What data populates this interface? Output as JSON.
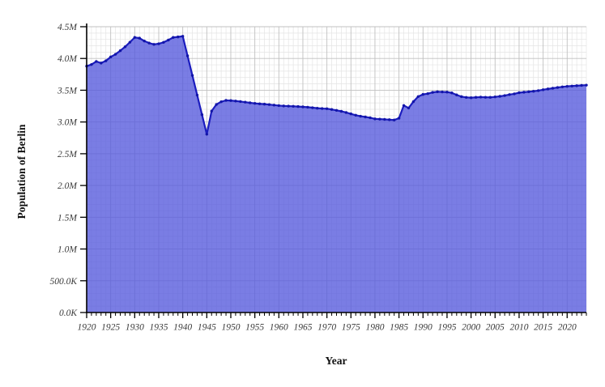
{
  "chart_data": {
    "type": "area",
    "title": "",
    "xlabel": "Year",
    "ylabel": "Population of Berlin",
    "legend": "none",
    "grid": "major and minor gridlines on",
    "xlim": [
      1920,
      2024
    ],
    "ylim_millions": [
      0,
      4.5
    ],
    "x_major_tick_step_years": 5,
    "x_minor_tick_step_years": 1,
    "y_major_tick_step_millions": 0.5,
    "y_minor_grid_step_millions": 0.1,
    "x_major_tick_labels": [
      "1920",
      "1925",
      "1930",
      "1935",
      "1940",
      "1945",
      "1950",
      "1955",
      "1960",
      "1965",
      "1970",
      "1975",
      "1980",
      "1985",
      "1990",
      "1995",
      "2000",
      "2005",
      "2010",
      "2015",
      "2020"
    ],
    "y_tick_labels": [
      "0.0K",
      "500.0K",
      "1.0M",
      "1.5M",
      "2.0M",
      "2.5M",
      "3.0M",
      "3.5M",
      "4.0M",
      "4.5M"
    ],
    "unit": "persons (values stored in millions)",
    "series": [
      {
        "name": "Population of Berlin",
        "x": [
          1920,
          1921,
          1922,
          1923,
          1924,
          1925,
          1926,
          1927,
          1928,
          1929,
          1930,
          1931,
          1932,
          1933,
          1934,
          1935,
          1936,
          1937,
          1938,
          1939,
          1940,
          1941,
          1942,
          1943,
          1944,
          1945,
          1946,
          1947,
          1948,
          1949,
          1950,
          1951,
          1952,
          1953,
          1954,
          1955,
          1956,
          1957,
          1958,
          1959,
          1960,
          1961,
          1962,
          1963,
          1964,
          1965,
          1966,
          1967,
          1968,
          1969,
          1970,
          1971,
          1972,
          1973,
          1974,
          1975,
          1976,
          1977,
          1978,
          1979,
          1980,
          1981,
          1982,
          1983,
          1984,
          1985,
          1986,
          1987,
          1988,
          1989,
          1990,
          1991,
          1992,
          1993,
          1994,
          1995,
          1996,
          1997,
          1998,
          1999,
          2000,
          2001,
          2002,
          2003,
          2004,
          2005,
          2006,
          2007,
          2008,
          2009,
          2010,
          2011,
          2012,
          2013,
          2014,
          2015,
          2016,
          2017,
          2018,
          2019,
          2020,
          2021,
          2022,
          2023,
          2024
        ],
        "values_millions": [
          3.879,
          3.905,
          3.953,
          3.928,
          3.963,
          4.024,
          4.066,
          4.123,
          4.184,
          4.256,
          4.331,
          4.32,
          4.275,
          4.243,
          4.222,
          4.232,
          4.254,
          4.29,
          4.331,
          4.339,
          4.35,
          4.041,
          3.733,
          3.424,
          3.116,
          2.807,
          3.171,
          3.276,
          3.319,
          3.34,
          3.337,
          3.33,
          3.322,
          3.312,
          3.302,
          3.293,
          3.286,
          3.281,
          3.274,
          3.266,
          3.258,
          3.253,
          3.25,
          3.247,
          3.243,
          3.238,
          3.233,
          3.225,
          3.217,
          3.212,
          3.209,
          3.197,
          3.183,
          3.168,
          3.149,
          3.128,
          3.107,
          3.091,
          3.079,
          3.067,
          3.049,
          3.045,
          3.041,
          3.036,
          3.031,
          3.06,
          3.26,
          3.22,
          3.32,
          3.4,
          3.434,
          3.446,
          3.466,
          3.476,
          3.473,
          3.471,
          3.458,
          3.426,
          3.399,
          3.387,
          3.382,
          3.388,
          3.392,
          3.389,
          3.388,
          3.395,
          3.404,
          3.416,
          3.432,
          3.443,
          3.461,
          3.469,
          3.476,
          3.484,
          3.494,
          3.508,
          3.52,
          3.531,
          3.543,
          3.553,
          3.561,
          3.566,
          3.571,
          3.576,
          3.58
        ]
      }
    ],
    "colors": {
      "line": "#1b1cbe",
      "marker": "#1215a8",
      "area_fill": "#5558dd",
      "area_fill_opacity": "0.78",
      "grid_minor": "#e4e4e4",
      "grid_major": "#c0c0c0",
      "axis": "#000000",
      "tick_text": "#3a3a3a",
      "background": "#ffffff"
    }
  }
}
